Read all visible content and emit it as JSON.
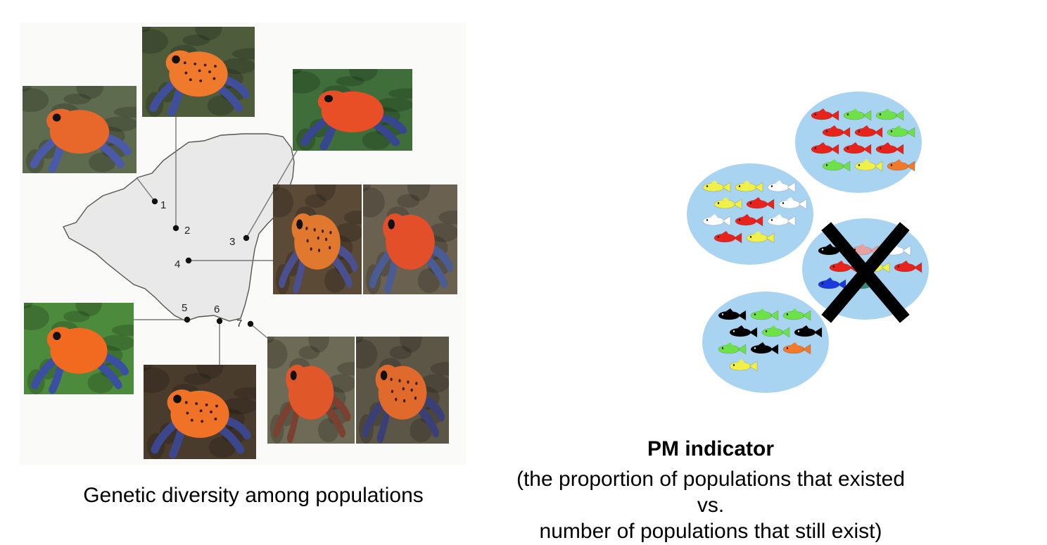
{
  "left_panel": {
    "caption": "Genetic diversity among populations",
    "map": {
      "region_fill": "#e9e9e9",
      "pins": [
        {
          "id": 1,
          "label": "1"
        },
        {
          "id": 2,
          "label": "2"
        },
        {
          "id": 3,
          "label": "3"
        },
        {
          "id": 4,
          "label": "4"
        },
        {
          "id": 5,
          "label": "5"
        },
        {
          "id": 6,
          "label": "6"
        },
        {
          "id": 7,
          "label": "7"
        }
      ]
    },
    "frog_photos": [
      {
        "name": "frog-photo-pop-1",
        "frog_color": "#e8672a",
        "leg_color": "#4b5aa8",
        "background": "#5f6b4f",
        "spots": false
      },
      {
        "name": "frog-photo-pop-2",
        "frog_color": "#ef7a2c",
        "leg_color": "#3f4f9c",
        "background": "#4e5c3c",
        "spots": true
      },
      {
        "name": "frog-photo-pop-3",
        "frog_color": "#e84f27",
        "leg_color": "#38468f",
        "background": "#3f6e3a",
        "spots": false
      },
      {
        "name": "frog-photo-pop-4a",
        "frog_color": "#e0782e",
        "leg_color": "#4a4f8f",
        "background": "#5a4a36",
        "spots": true
      },
      {
        "name": "frog-photo-pop-4b",
        "frog_color": "#e24f28",
        "leg_color": "#4a5c94",
        "background": "#6b6150",
        "spots": false
      },
      {
        "name": "frog-photo-pop-5",
        "frog_color": "#f26a1f",
        "leg_color": "#3a4fa0",
        "background": "#4c8a3c",
        "spots": false
      },
      {
        "name": "frog-photo-pop-6",
        "frog_color": "#ef7226",
        "leg_color": "#3c468c",
        "background": "#4a3c2c",
        "spots": true
      },
      {
        "name": "frog-photo-pop-7a",
        "frog_color": "#e0572a",
        "leg_color": "#7a4030",
        "background": "#6d6a56",
        "spots": false
      },
      {
        "name": "frog-photo-pop-7b",
        "frog_color": "#e06a2c",
        "leg_color": "#3a3f76",
        "background": "#5c5646",
        "spots": true
      }
    ]
  },
  "right_panel": {
    "title": "PM indicator",
    "description_line1": "(the proportion of populations that existed vs.",
    "description_line2": "number of populations that still exist)",
    "population_fill": "#a8d4f2",
    "cross_color": "#000000",
    "populations": [
      {
        "name": "population-circle-top",
        "extinct": false,
        "fish": [
          "#e8231b",
          "#6ee04a",
          "#6ee04a",
          "#e8231b",
          "#e8231b",
          "#6ee04a",
          "#e8231b",
          "#e8231b",
          "#e8231b",
          "#6ee04a",
          "#f0f04a",
          "#f07a2a"
        ]
      },
      {
        "name": "population-circle-left",
        "extinct": false,
        "fish": [
          "#f0f04a",
          "#f0f04a",
          "#ffffff",
          "#f0f04a",
          "#e8231b",
          "#ffffff",
          "#ffffff",
          "#e8231b",
          "#ffffff",
          "#e8231b",
          "#f0f04a"
        ]
      },
      {
        "name": "population-circle-extinct",
        "extinct": true,
        "fish": [
          "#000000",
          "#e8a0a0",
          "#ffffff",
          "#e8231b",
          "#f0f04a",
          "#e8231b",
          "#1a3adb",
          "#3a8a7a"
        ]
      },
      {
        "name": "population-circle-bottom",
        "extinct": false,
        "fish": [
          "#000000",
          "#6ee04a",
          "#6ee04a",
          "#000000",
          "#6ee04a",
          "#000000",
          "#6ee04a",
          "#000000",
          "#f07a2a",
          "#f0f04a"
        ]
      }
    ]
  }
}
